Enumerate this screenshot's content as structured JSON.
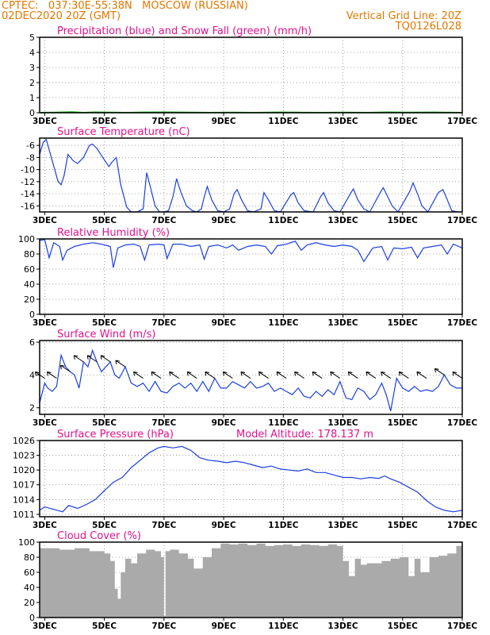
{
  "header": {
    "line1_left": "CPTEC:   037:30E-55:38N   MOSCOW (RUSSIAN)",
    "line2_left": "02DEC2020 20Z (GMT)",
    "line2_right": "Vertical Grid Line: 20Z",
    "line3_right": "TQ0126L028"
  },
  "colors": {
    "header": "#e07800",
    "title": "#e0138c",
    "line": "#1a3fe0",
    "snow": "#00b000",
    "bars": "#aaaaaa",
    "wind": "#000000"
  },
  "x_ticks": [
    "3DEC",
    "5DEC",
    "7DEC",
    "9DEC",
    "11DEC",
    "13DEC",
    "15DEC",
    "17DEC"
  ],
  "chart_data": [
    {
      "type": "line",
      "title": "Precipitation (blue) and Snow Fall (green) (mm/h)",
      "xlim": [
        2.83,
        17.0
      ],
      "ylim": [
        0,
        5
      ],
      "yticks": [
        0,
        1,
        2,
        3,
        4,
        5
      ],
      "series": [
        {
          "color": "#1a3fe0",
          "x": [
            2.83,
            17.0
          ],
          "y": [
            0,
            0
          ]
        },
        {
          "color": "#00b000",
          "x": [
            2.83,
            3.4,
            3.9,
            4.3,
            4.7,
            5.2,
            5.7,
            6.3,
            7.0,
            7.8,
            8.5,
            9.3,
            10.0,
            10.8,
            11.5,
            12.3,
            13.0,
            13.8,
            14.5,
            15.3,
            16.0,
            17.0
          ],
          "y": [
            0.02,
            0.03,
            0.06,
            0.02,
            0.05,
            0.03,
            0.02,
            0.04,
            0.05,
            0.03,
            0.02,
            0.03,
            0.02,
            0.04,
            0.03,
            0.02,
            0.03,
            0.02,
            0.05,
            0.03,
            0.04,
            0.02
          ]
        }
      ]
    },
    {
      "type": "line",
      "title": "Surface Temperature (nC)",
      "xlim": [
        2.83,
        17.0
      ],
      "ylim": [
        -17,
        -4.8
      ],
      "yticks": [
        -6,
        -8,
        -10,
        -12,
        -14,
        -16
      ],
      "series": [
        {
          "color": "#1a3fe0",
          "x": [
            2.83,
            2.95,
            3.05,
            3.25,
            3.45,
            3.55,
            3.65,
            3.78,
            3.95,
            4.1,
            4.3,
            4.5,
            4.6,
            4.75,
            4.95,
            5.15,
            5.25,
            5.4,
            5.55,
            5.75,
            5.9,
            6.1,
            6.3,
            6.42,
            6.55,
            6.7,
            6.85,
            7.0,
            7.15,
            7.3,
            7.42,
            7.55,
            7.75,
            7.95,
            8.1,
            8.25,
            8.35,
            8.45,
            8.6,
            8.8,
            9.0,
            9.2,
            9.35,
            9.45,
            9.6,
            9.8,
            10.0,
            10.25,
            10.35,
            10.5,
            10.7,
            10.9,
            11.25,
            11.35,
            11.5,
            11.7,
            12.0,
            12.25,
            12.35,
            12.5,
            12.7,
            12.9,
            13.25,
            13.35,
            13.5,
            13.7,
            13.9,
            14.25,
            14.35,
            14.5,
            14.65,
            14.85,
            15.25,
            15.35,
            15.5,
            15.65,
            15.85,
            16.2,
            16.35,
            16.5,
            16.65,
            16.85,
            17.0
          ],
          "y": [
            -7.5,
            -5.5,
            -5.0,
            -8.5,
            -12.0,
            -12.5,
            -11.0,
            -7.5,
            -8.5,
            -9.0,
            -8.0,
            -6.0,
            -5.8,
            -6.5,
            -8.0,
            -9.5,
            -8.8,
            -8.0,
            -12.5,
            -16.2,
            -17.0,
            -17.0,
            -16.5,
            -10.5,
            -13.0,
            -16.0,
            -17.0,
            -17.0,
            -16.8,
            -14.5,
            -11.5,
            -13.5,
            -16.0,
            -16.8,
            -17.0,
            -16.5,
            -14.5,
            -12.8,
            -15.0,
            -16.8,
            -17.0,
            -16.5,
            -14.0,
            -13.3,
            -15.0,
            -16.8,
            -17.0,
            -16.5,
            -13.8,
            -15.0,
            -16.8,
            -17.0,
            -14.2,
            -13.8,
            -15.5,
            -16.8,
            -17.0,
            -14.5,
            -13.8,
            -15.5,
            -16.8,
            -17.0,
            -14.0,
            -13.2,
            -15.0,
            -16.5,
            -17.0,
            -13.8,
            -13.0,
            -14.5,
            -16.0,
            -17.0,
            -13.5,
            -12.2,
            -14.0,
            -16.0,
            -17.0,
            -13.8,
            -13.3,
            -15.0,
            -16.8,
            -17.0,
            -17.0
          ]
        }
      ]
    },
    {
      "type": "line",
      "title": "Relative Humidity (%)",
      "xlim": [
        2.83,
        17.0
      ],
      "ylim": [
        0,
        100
      ],
      "yticks": [
        0,
        20,
        40,
        60,
        80,
        100
      ],
      "series": [
        {
          "color": "#1a3fe0",
          "x": [
            2.83,
            3.0,
            3.15,
            3.3,
            3.5,
            3.6,
            3.75,
            4.0,
            4.3,
            4.6,
            4.9,
            5.2,
            5.3,
            5.45,
            5.7,
            6.0,
            6.2,
            6.35,
            6.5,
            6.8,
            7.0,
            7.1,
            7.3,
            7.6,
            7.9,
            8.2,
            8.35,
            8.5,
            8.8,
            9.1,
            9.3,
            9.5,
            9.8,
            10.1,
            10.4,
            10.6,
            10.8,
            11.1,
            11.4,
            11.6,
            11.8,
            12.1,
            12.4,
            12.7,
            13.0,
            13.3,
            13.5,
            13.7,
            14.0,
            14.3,
            14.5,
            14.7,
            15.0,
            15.3,
            15.5,
            15.7,
            16.0,
            16.3,
            16.5,
            16.7,
            17.0
          ],
          "y": [
            98,
            99,
            75,
            95,
            90,
            72,
            85,
            90,
            93,
            95,
            93,
            90,
            62,
            88,
            92,
            93,
            90,
            72,
            92,
            93,
            92,
            74,
            93,
            93,
            90,
            92,
            73,
            90,
            92,
            88,
            92,
            85,
            90,
            92,
            90,
            80,
            91,
            93,
            97,
            85,
            92,
            95,
            92,
            90,
            92,
            90,
            85,
            70,
            88,
            90,
            72,
            88,
            87,
            89,
            75,
            88,
            90,
            92,
            80,
            93,
            88
          ]
        }
      ]
    },
    {
      "type": "line",
      "title": "Surface Wind (m/s)",
      "xlim": [
        2.83,
        17.0
      ],
      "ylim": [
        1.6,
        6.1
      ],
      "yticks": [
        2,
        4,
        6
      ],
      "arrows": "wind direction barbs drawn along the upper band",
      "series": [
        {
          "color": "#1a3fe0",
          "x": [
            2.83,
            3.0,
            3.1,
            3.25,
            3.4,
            3.55,
            3.7,
            3.85,
            4.0,
            4.15,
            4.3,
            4.45,
            4.6,
            4.75,
            4.9,
            5.05,
            5.2,
            5.35,
            5.5,
            5.7,
            5.9,
            6.1,
            6.3,
            6.5,
            6.7,
            6.9,
            7.1,
            7.3,
            7.5,
            7.7,
            7.9,
            8.1,
            8.3,
            8.5,
            8.7,
            8.9,
            9.1,
            9.3,
            9.5,
            9.7,
            9.9,
            10.1,
            10.3,
            10.5,
            10.7,
            10.9,
            11.1,
            11.3,
            11.5,
            11.7,
            11.9,
            12.1,
            12.3,
            12.5,
            12.7,
            12.9,
            13.1,
            13.3,
            13.5,
            13.7,
            13.9,
            14.1,
            14.3,
            14.45,
            14.6,
            14.8,
            15.0,
            15.2,
            15.4,
            15.6,
            15.8,
            16.0,
            16.2,
            16.4,
            16.6,
            16.8,
            17.0
          ],
          "y": [
            2.3,
            3.5,
            3.2,
            3.0,
            3.3,
            5.2,
            4.5,
            4.2,
            4.0,
            3.2,
            4.8,
            4.5,
            5.5,
            4.8,
            4.2,
            4.5,
            4.8,
            4.0,
            3.8,
            4.5,
            3.5,
            3.3,
            3.5,
            3.0,
            3.6,
            3.0,
            2.9,
            3.3,
            3.5,
            3.2,
            3.5,
            3.0,
            3.6,
            3.0,
            3.8,
            3.2,
            3.2,
            3.6,
            3.4,
            3.2,
            3.6,
            3.2,
            3.3,
            3.5,
            3.0,
            3.2,
            3.0,
            2.8,
            3.2,
            2.7,
            2.6,
            3.0,
            2.7,
            3.1,
            2.8,
            3.6,
            2.6,
            2.5,
            3.2,
            3.0,
            2.5,
            2.8,
            3.5,
            2.8,
            1.8,
            3.8,
            3.2,
            3.0,
            3.3,
            3.0,
            3.1,
            3.0,
            3.3,
            4.0,
            3.4,
            3.2,
            3.2
          ]
        }
      ]
    },
    {
      "type": "line",
      "title": "Surface Pressure (hPa)",
      "annotation": "Model Altitude: 178.137 m",
      "xlim": [
        2.83,
        17.0
      ],
      "ylim": [
        1010.5,
        1026
      ],
      "yticks": [
        1011,
        1014,
        1017,
        1020,
        1023,
        1026
      ],
      "series": [
        {
          "color": "#1a3fe0",
          "x": [
            2.83,
            3.0,
            3.3,
            3.6,
            3.8,
            4.1,
            4.4,
            4.7,
            5.0,
            5.3,
            5.6,
            5.9,
            6.2,
            6.5,
            6.8,
            7.0,
            7.3,
            7.6,
            7.9,
            8.2,
            8.5,
            8.8,
            9.1,
            9.4,
            9.7,
            10.0,
            10.3,
            10.6,
            10.9,
            11.2,
            11.5,
            11.8,
            12.1,
            12.4,
            12.7,
            13.0,
            13.3,
            13.6,
            13.9,
            14.2,
            14.4,
            14.6,
            14.9,
            15.2,
            15.5,
            15.8,
            16.1,
            16.4,
            16.7,
            17.0
          ],
          "y": [
            1011.8,
            1012.5,
            1012.0,
            1011.5,
            1012.8,
            1012.2,
            1013.0,
            1014.0,
            1015.8,
            1017.5,
            1018.5,
            1020.5,
            1022.0,
            1023.5,
            1024.5,
            1024.8,
            1024.5,
            1024.8,
            1024.0,
            1022.5,
            1022.0,
            1021.8,
            1021.5,
            1021.8,
            1021.5,
            1021.0,
            1020.5,
            1020.8,
            1020.2,
            1020.0,
            1019.8,
            1020.2,
            1019.5,
            1019.5,
            1019.0,
            1018.5,
            1018.5,
            1018.2,
            1018.5,
            1018.3,
            1018.8,
            1018.2,
            1017.5,
            1016.5,
            1015.5,
            1013.8,
            1012.5,
            1011.8,
            1011.5,
            1011.8
          ]
        }
      ]
    },
    {
      "type": "bar",
      "title": "Cloud Cover (%)",
      "xlim": [
        2.83,
        17.0
      ],
      "ylim": [
        0,
        100
      ],
      "yticks": [
        0,
        20,
        40,
        60,
        80,
        100
      ],
      "series": [
        {
          "color": "#aaaaaa",
          "x": [
            2.83,
            3.5,
            4.0,
            4.5,
            5.0,
            5.2,
            5.35,
            5.45,
            5.55,
            5.7,
            5.9,
            6.1,
            6.4,
            6.7,
            6.9,
            7.0,
            7.05,
            7.2,
            7.5,
            7.8,
            8.0,
            8.3,
            8.6,
            8.9,
            9.2,
            9.5,
            9.8,
            10.1,
            10.4,
            10.7,
            11.0,
            11.3,
            11.6,
            11.9,
            12.2,
            12.5,
            12.8,
            13.0,
            13.2,
            13.4,
            13.6,
            13.8,
            14.0,
            14.3,
            14.6,
            14.9,
            15.2,
            15.4,
            15.6,
            15.9,
            16.2,
            16.5,
            16.8,
            17.0
          ],
          "y": [
            92,
            90,
            92,
            88,
            85,
            75,
            38,
            25,
            60,
            78,
            72,
            85,
            90,
            88,
            80,
            2,
            88,
            90,
            85,
            78,
            65,
            80,
            92,
            98,
            97,
            98,
            96,
            98,
            95,
            96,
            97,
            95,
            97,
            96,
            95,
            97,
            95,
            75,
            55,
            78,
            70,
            72,
            72,
            75,
            78,
            80,
            55,
            78,
            60,
            80,
            82,
            85,
            95,
            95
          ]
        }
      ]
    }
  ]
}
